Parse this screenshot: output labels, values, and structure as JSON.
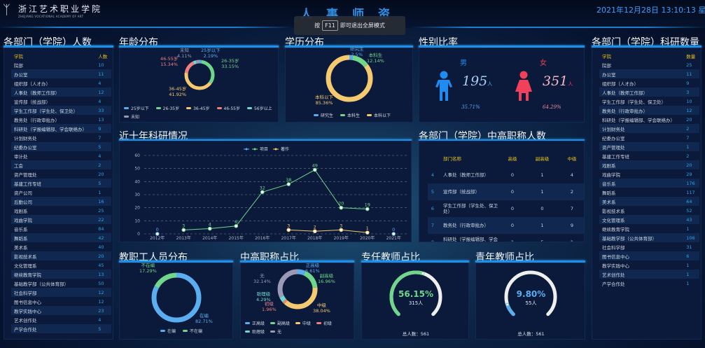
{
  "header": {
    "logo_cn": "浙江艺术职业学院",
    "logo_en": "ZHEJIANG VOCATIONAL ACADEMY OF ART",
    "title": "人事师资",
    "datetime": "2021年12月28日 13:10:13 星期二"
  },
  "toast": {
    "prefix": "按",
    "key": "F11",
    "suffix": "即可退出全屏模式"
  },
  "colors": {
    "blue": "#5aaef0",
    "green": "#6fd68b",
    "yellow": "#f5c96f",
    "red": "#f08080",
    "teal": "#6fd8d0",
    "gray": "#9a9ab6",
    "male": "#1e8cf0",
    "female": "#f0405a",
    "accent": "#1e8fe6"
  },
  "left_table": {
    "title": "各部门（学院）人数",
    "headers": [
      "学院",
      "人数"
    ],
    "rows": [
      [
        "院部",
        "10"
      ],
      [
        "办公室",
        "11"
      ],
      [
        "组织部（人才办）",
        "4"
      ],
      [
        "人事处（教师工作部）",
        "12"
      ],
      [
        "宣传部（统战部）",
        "4"
      ],
      [
        "学生工作部（学生处、保卫处）",
        "33"
      ],
      [
        "教务处（行政审批办）",
        "13"
      ],
      [
        "科研处（学报编辑部、学会联络办）",
        "9"
      ],
      [
        "计划财务处",
        "7"
      ],
      [
        "纪委办公室",
        "5"
      ],
      [
        "审计处",
        "4"
      ],
      [
        "工会",
        "2"
      ],
      [
        "资产管理处",
        "20"
      ],
      [
        "基建工作专班",
        "5"
      ],
      [
        "资产公司",
        "1"
      ],
      [
        "后勤公司",
        "16"
      ],
      [
        "戏剧系",
        "25"
      ],
      [
        "戏曲学院",
        "22"
      ],
      [
        "音乐系",
        "84"
      ],
      [
        "舞蹈系",
        "42"
      ],
      [
        "美术系",
        "40"
      ],
      [
        "影视技术系",
        "20"
      ],
      [
        "文化管理系",
        "45"
      ],
      [
        "继续教育学院",
        "13"
      ],
      [
        "基础教学部（公共体育部）",
        "50"
      ],
      [
        "社会科学部",
        "12"
      ],
      [
        "图书信息中心",
        "12"
      ],
      [
        "教学实践中心",
        "23"
      ],
      [
        "艺术创作处",
        "4"
      ],
      [
        "产学合作处",
        "5"
      ]
    ]
  },
  "right_table": {
    "title": "各部门（学院）科研数量",
    "headers": [
      "学院",
      "数量"
    ],
    "rows": [
      [
        "院部",
        "25"
      ],
      [
        "办公室",
        "11"
      ],
      [
        "组织部（人才办）",
        "9"
      ],
      [
        "人事处（教师工作部）",
        "3"
      ],
      [
        "学生工作部（学生处、保卫处）",
        "10"
      ],
      [
        "教务处（行政审批办）",
        "12"
      ],
      [
        "科研处（学报编辑部、学会联络办）",
        "20"
      ],
      [
        "计划财务处",
        "2"
      ],
      [
        "纪委办公室",
        "7"
      ],
      [
        "资产管理处",
        "1"
      ],
      [
        "基建工作专班",
        "2"
      ],
      [
        "戏剧系",
        "20"
      ],
      [
        "戏曲学院",
        "29"
      ],
      [
        "音乐系",
        "176"
      ],
      [
        "舞蹈系",
        "117"
      ],
      [
        "美术系",
        "64"
      ],
      [
        "影视技术系",
        "52"
      ],
      [
        "文化管理系",
        "43"
      ],
      [
        "继续教育学院",
        "1"
      ],
      [
        "基础教学部（公共体育部）",
        "106"
      ],
      [
        "社会科学部",
        "31"
      ],
      [
        "图书信息中心",
        "6"
      ],
      [
        "教学实践中心",
        "1"
      ],
      [
        "艺术创作处",
        "1"
      ],
      [
        "产学合作处",
        "1"
      ]
    ]
  },
  "age": {
    "title": "年龄分布",
    "slices": [
      {
        "name": "25岁以下",
        "pct": "2.19%",
        "value": 2.19,
        "color": "#5aaef0"
      },
      {
        "name": "26-35岁",
        "pct": "33.15%",
        "value": 33.15,
        "color": "#6fd68b"
      },
      {
        "name": "36-45岁",
        "pct": "41.92%",
        "value": 41.92,
        "color": "#f5c96f"
      },
      {
        "name": "46-55岁",
        "pct": "15.34%",
        "value": 15.34,
        "color": "#f08080"
      },
      {
        "name": "56岁以上",
        "pct": "",
        "value": 3.29,
        "color": "#6fd8d0"
      },
      {
        "name": "未知",
        "pct": "4.11%",
        "value": 4.11,
        "color": "#9a9ab6"
      }
    ]
  },
  "education": {
    "title": "学历分布",
    "slices": [
      {
        "name": "研究生",
        "pct": "2.5%",
        "value": 2.5,
        "color": "#5aaef0"
      },
      {
        "name": "本科生",
        "pct": "12.14%",
        "value": 12.14,
        "color": "#6fd68b"
      },
      {
        "name": "本科以下",
        "pct": "85.36%",
        "value": 85.36,
        "color": "#f5c96f"
      }
    ]
  },
  "gender": {
    "title": "性别比率",
    "male": {
      "label": "男",
      "count": "195",
      "unit": "人",
      "pct": "35.71%"
    },
    "female": {
      "label": "女",
      "count": "351",
      "unit": "人",
      "pct": "64.29%"
    }
  },
  "research": {
    "title": "近十年科研情况",
    "chart_data": {
      "type": "line",
      "categories": [
        "2012年",
        "2013年",
        "2014年",
        "2015年",
        "2016年",
        "2017年",
        "2018年",
        "2019年",
        "2020年",
        "2021年"
      ],
      "ylim": [
        0,
        60
      ],
      "yticks": [
        "0",
        "10",
        "20",
        "30",
        "40",
        "50",
        "60"
      ],
      "grid": true,
      "legend": "top-center",
      "series": [
        {
          "name": "",
          "color": "#5aaef0",
          "values": [
            0,
            null,
            null,
            null,
            null,
            null,
            null,
            null,
            null,
            0
          ]
        },
        {
          "name": "项目",
          "color": "#6fd68b",
          "values": [
            null,
            3,
            4,
            6,
            32,
            38,
            49,
            20,
            19,
            null
          ]
        },
        {
          "name": "著作",
          "color": "#f5c96f",
          "values": [
            null,
            null,
            null,
            null,
            null,
            3,
            2,
            3,
            1,
            null
          ]
        }
      ]
    }
  },
  "titles_table": {
    "title": "各部门（学院）中高职称人数",
    "headers": [
      "",
      "部门名称",
      "高级",
      "副高级",
      "中级"
    ],
    "rows": [
      [
        "4",
        "人事处（教师工作部）",
        "0",
        "1",
        "4"
      ],
      [
        "5",
        "宣传部（统战部）",
        "0",
        "1",
        "2"
      ],
      [
        "6",
        "学生工作部（学生处、保卫处）",
        "0",
        "0",
        "7"
      ],
      [
        "7",
        "教务处（行政审批办）",
        "0",
        "1",
        "9"
      ],
      [
        "8",
        "科研处（学报编辑部、学会联络办）",
        "1",
        "5",
        "1"
      ]
    ]
  },
  "staff": {
    "title": "教职工人员分布",
    "slices": [
      {
        "name": "在编",
        "pct": "82.71%",
        "value": 82.71,
        "color": "#5aaef0"
      },
      {
        "name": "不在编",
        "pct": "17.29%",
        "value": 17.29,
        "color": "#6fd68b"
      }
    ]
  },
  "rank": {
    "title": "中高职称占比",
    "slices": [
      {
        "name": "正高级",
        "pct": "6.61%",
        "value": 6.61,
        "color": "#5aaef0"
      },
      {
        "name": "副高级",
        "pct": "16.96%",
        "value": 16.96,
        "color": "#6fd68b"
      },
      {
        "name": "中级",
        "pct": "38.04%",
        "value": 38.04,
        "color": "#f5c96f"
      },
      {
        "name": "初级",
        "pct": "1.96%",
        "value": 1.96,
        "color": "#f08080"
      },
      {
        "name": "助理级",
        "pct": "4.29%",
        "value": 4.29,
        "color": "#6fd8d0"
      },
      {
        "name": "无",
        "pct": "32.14%",
        "value": 32.14,
        "color": "#9a9ab6"
      }
    ]
  },
  "fulltime": {
    "title": "专任教师占比",
    "pct": "56.15%",
    "value": 56.15,
    "count": "315人",
    "total": "总人数：561",
    "color": "#6fd68b"
  },
  "young": {
    "title": "青年教师占比",
    "pct": "9.80%",
    "value": 9.8,
    "count": "55人",
    "total": "总人数：561",
    "color": "#5aaef0"
  }
}
